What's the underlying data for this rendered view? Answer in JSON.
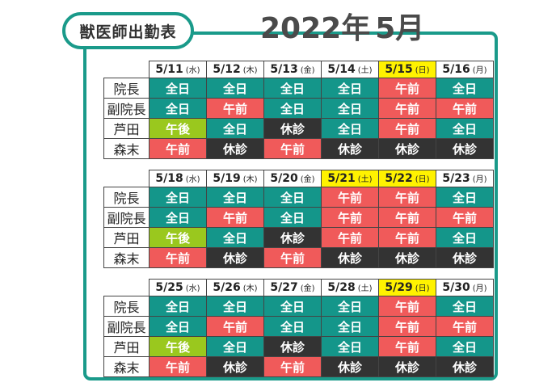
{
  "header": {
    "badge_label": "獣医師出勤表",
    "year": "2022年",
    "month": "5月"
  },
  "colors": {
    "full": "#14968a",
    "am": "#f05a5a",
    "pm": "#9ac81e",
    "off": "#333333",
    "weekend_highlight": "#fff200",
    "frame": "#1a9a8a"
  },
  "status_labels": {
    "full": "全日",
    "am": "午前",
    "pm": "午後",
    "off": "休診"
  },
  "doctors": [
    "院長",
    "副院長",
    "芦田",
    "森末"
  ],
  "weeks": [
    {
      "days": [
        {
          "date": "5/11",
          "dow": "(水)",
          "highlight": false
        },
        {
          "date": "5/12",
          "dow": "(木)",
          "highlight": false
        },
        {
          "date": "5/13",
          "dow": "(金)",
          "highlight": false
        },
        {
          "date": "5/14",
          "dow": "(土)",
          "highlight": false
        },
        {
          "date": "5/15",
          "dow": "(日)",
          "highlight": true
        },
        {
          "date": "5/16",
          "dow": "(月)",
          "highlight": false
        }
      ],
      "rows": [
        [
          "full",
          "full",
          "full",
          "full",
          "am",
          "full"
        ],
        [
          "full",
          "am",
          "full",
          "full",
          "am",
          "am"
        ],
        [
          "pm",
          "full",
          "off",
          "full",
          "am",
          "full"
        ],
        [
          "am",
          "off",
          "am",
          "off",
          "off",
          "off"
        ]
      ]
    },
    {
      "days": [
        {
          "date": "5/18",
          "dow": "(水)",
          "highlight": false
        },
        {
          "date": "5/19",
          "dow": "(木)",
          "highlight": false
        },
        {
          "date": "5/20",
          "dow": "(金)",
          "highlight": false
        },
        {
          "date": "5/21",
          "dow": "(土)",
          "highlight": true
        },
        {
          "date": "5/22",
          "dow": "(日)",
          "highlight": true
        },
        {
          "date": "5/23",
          "dow": "(月)",
          "highlight": false
        }
      ],
      "rows": [
        [
          "full",
          "full",
          "full",
          "am",
          "am",
          "full"
        ],
        [
          "full",
          "am",
          "full",
          "am",
          "am",
          "am"
        ],
        [
          "pm",
          "full",
          "off",
          "am",
          "am",
          "full"
        ],
        [
          "am",
          "off",
          "am",
          "off",
          "off",
          "off"
        ]
      ]
    },
    {
      "days": [
        {
          "date": "5/25",
          "dow": "(水)",
          "highlight": false
        },
        {
          "date": "5/26",
          "dow": "(木)",
          "highlight": false
        },
        {
          "date": "5/27",
          "dow": "(金)",
          "highlight": false
        },
        {
          "date": "5/28",
          "dow": "(土)",
          "highlight": false
        },
        {
          "date": "5/29",
          "dow": "(日)",
          "highlight": true
        },
        {
          "date": "5/30",
          "dow": "(月)",
          "highlight": false
        }
      ],
      "rows": [
        [
          "full",
          "full",
          "full",
          "full",
          "am",
          "full"
        ],
        [
          "full",
          "am",
          "full",
          "full",
          "am",
          "am"
        ],
        [
          "pm",
          "full",
          "off",
          "full",
          "am",
          "full"
        ],
        [
          "am",
          "off",
          "am",
          "off",
          "off",
          "off"
        ]
      ]
    }
  ]
}
